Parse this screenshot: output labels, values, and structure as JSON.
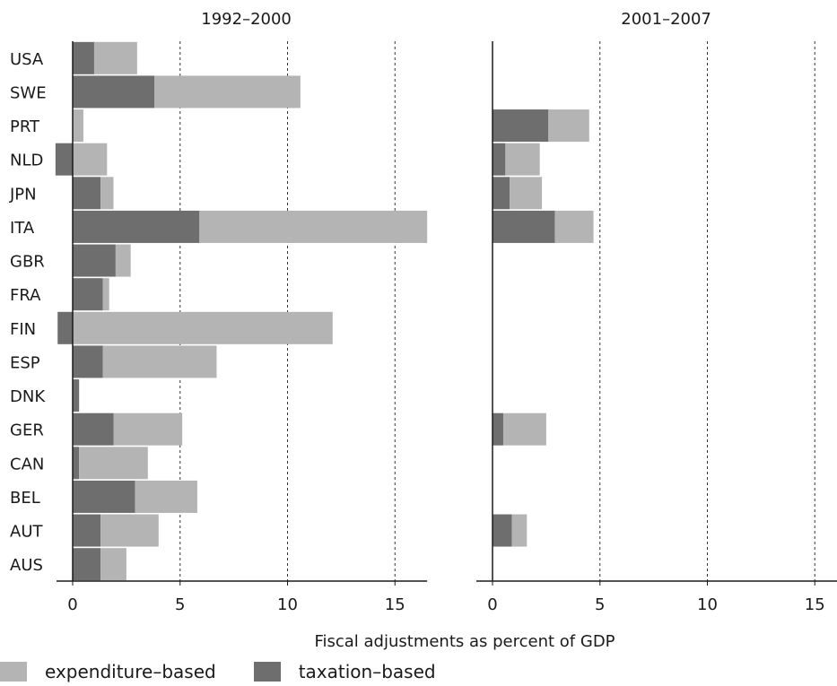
{
  "chart_data": {
    "type": "bar",
    "orientation": "horizontal",
    "stacked": true,
    "xlabel": "Fiscal adjustments as percent of GDP",
    "categories": [
      "USA",
      "SWE",
      "PRT",
      "NLD",
      "JPN",
      "ITA",
      "GBR",
      "FRA",
      "FIN",
      "ESP",
      "DNK",
      "GER",
      "CAN",
      "BEL",
      "AUT",
      "AUS"
    ],
    "panels": [
      {
        "title": "1992–2000",
        "xlim": [
          0,
          16.5
        ],
        "xticks": [
          0,
          5,
          10,
          15
        ],
        "series": [
          {
            "name": "taxation-based",
            "values": [
              1.0,
              3.8,
              0.0,
              -0.8,
              1.3,
              5.9,
              2.0,
              1.4,
              -0.7,
              1.4,
              0.3,
              1.9,
              0.3,
              2.9,
              1.3,
              1.3
            ]
          },
          {
            "name": "expenditure-based",
            "values": [
              2.0,
              6.8,
              0.5,
              1.6,
              0.6,
              10.6,
              0.7,
              0.3,
              12.1,
              5.3,
              0.0,
              3.2,
              3.2,
              2.9,
              2.7,
              1.2
            ]
          }
        ]
      },
      {
        "title": "2001–2007",
        "xlim": [
          0,
          16.5
        ],
        "xticks": [
          0,
          5,
          10,
          15
        ],
        "series": [
          {
            "name": "taxation-based",
            "values": [
              0,
              0,
              2.6,
              0.6,
              0.8,
              2.9,
              0,
              0,
              0,
              0,
              0,
              0.5,
              0,
              0,
              0.9,
              0
            ]
          },
          {
            "name": "expenditure-based",
            "values": [
              0,
              0,
              1.9,
              1.6,
              1.5,
              1.8,
              0,
              0,
              0,
              0,
              0,
              2.0,
              0,
              0,
              0.7,
              0
            ]
          }
        ]
      }
    ],
    "colors": {
      "taxation-based": "#6e6e6e",
      "expenditure-based": "#b4b4b4"
    },
    "grid": "dashed vertical at ticks",
    "legend": [
      "expenditure–based",
      "taxation–based"
    ]
  }
}
